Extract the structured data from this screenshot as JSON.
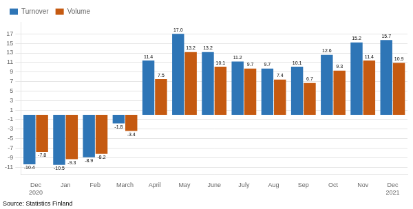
{
  "chart_data": {
    "type": "bar",
    "categories": [
      "Dec\n2020",
      "Jan",
      "Feb",
      "March",
      "April",
      "May",
      "June",
      "July",
      "Aug",
      "Sep",
      "Oct",
      "Nov",
      "Dec\n2021"
    ],
    "series": [
      {
        "name": "Turnover",
        "color": "#2e75b6",
        "values": [
          -10.4,
          -10.5,
          -8.9,
          -1.8,
          11.4,
          17.0,
          13.2,
          11.2,
          9.7,
          10.1,
          12.6,
          15.2,
          15.7
        ],
        "value_labels": [
          "-10.4",
          "-10.5",
          "-8.9",
          "-1.8",
          "11.4",
          "17.0",
          "13.2",
          "11.2",
          "9.7",
          "10.1",
          "12.6",
          "15.2",
          "15.7"
        ]
      },
      {
        "name": "Volume",
        "color": "#c55a11",
        "values": [
          -7.8,
          -9.3,
          -8.2,
          -3.4,
          7.5,
          13.2,
          10.1,
          9.7,
          7.4,
          6.7,
          9.3,
          11.4,
          10.9
        ],
        "value_labels": [
          "-7.8",
          "-9.3",
          "-8.2",
          "-3.4",
          "7.5",
          "13.2",
          "10.1",
          "9.7",
          "7.4",
          "6.7",
          "9.3",
          "11.4",
          "10.9"
        ]
      }
    ],
    "ylim": [
      -12.5,
      19.5
    ],
    "yticks": [
      -11,
      -9,
      -7,
      -5,
      -3,
      -1,
      1,
      3,
      5,
      7,
      9,
      11,
      13,
      15,
      17
    ],
    "grid": true,
    "legend": "upper left",
    "data_labels": true,
    "source": "Source: Statistics Finland"
  }
}
